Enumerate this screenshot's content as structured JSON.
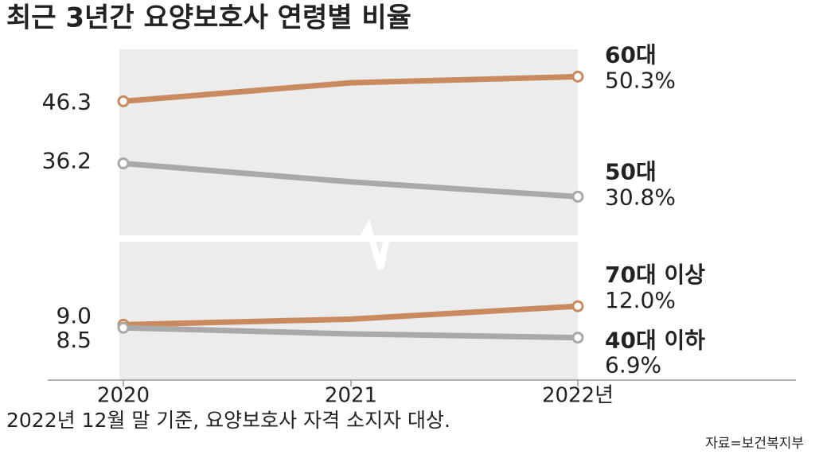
{
  "chart_data": {
    "type": "line",
    "title": "최근 3년간 요양보호사 연령별 비율",
    "note": "2022년 12월 말 기준, 요양보호사 자격 소지자 대상.",
    "source": "자료=보건복지부",
    "categories": [
      "2020",
      "2021",
      "2022년"
    ],
    "ylim": [
      0,
      55
    ],
    "axis_break": [
      23,
      24
    ],
    "series": [
      {
        "name": "60대",
        "color": "#c98a5f",
        "values": [
          46.3,
          49.3,
          50.3
        ],
        "value_labels": [
          "46.3",
          null,
          "50.3%"
        ]
      },
      {
        "name": "50대",
        "color": "#a9a9a9",
        "values": [
          36.2,
          33.2,
          30.8
        ],
        "value_labels": [
          "36.2",
          null,
          "30.8%"
        ]
      },
      {
        "name": "70대 이상",
        "color": "#c98a5f",
        "values": [
          9.0,
          9.9,
          12.0
        ],
        "value_labels": [
          "9.0",
          null,
          "12.0%"
        ]
      },
      {
        "name": "40대 이하",
        "color": "#a9a9a9",
        "values": [
          8.5,
          7.5,
          6.9
        ],
        "value_labels": [
          "8.5",
          null,
          "6.9%"
        ]
      }
    ]
  }
}
